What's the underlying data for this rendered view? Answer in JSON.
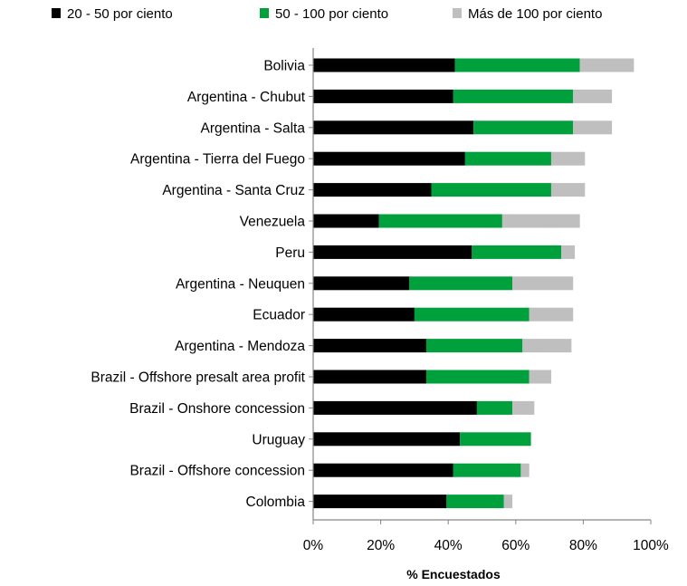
{
  "chart_data": {
    "type": "bar",
    "orientation": "horizontal",
    "stacked": true,
    "xlabel": "% Encuestados",
    "xlim": [
      0,
      100
    ],
    "x_ticks": [
      "0%",
      "20%",
      "40%",
      "60%",
      "80%",
      "100%"
    ],
    "x_tick_values": [
      0,
      20,
      40,
      60,
      80,
      100
    ],
    "legend_position": "top",
    "grid": false,
    "categories": [
      "Bolivia",
      "Argentina - Chubut",
      "Argentina - Salta",
      "Argentina - Tierra del Fuego",
      "Argentina - Santa Cruz",
      "Venezuela",
      "Peru",
      "Argentina - Neuquen",
      "Ecuador",
      "Argentina - Mendoza",
      "Brazil - Offshore presalt area profit",
      "Brazil - Onshore concession",
      "Uruguay",
      "Brazil - Offshore concession",
      "Colombia"
    ],
    "series": [
      {
        "name": "20 - 50 por ciento",
        "color": "#000000",
        "values": [
          42,
          41.5,
          47.5,
          45,
          35,
          19.5,
          47,
          28.5,
          30,
          33.5,
          33.5,
          48.5,
          43.5,
          41.5,
          39.5
        ]
      },
      {
        "name": "50 - 100 por ciento",
        "color": "#00A03C",
        "values": [
          37,
          35.5,
          29.5,
          25.5,
          35.5,
          36.5,
          26.5,
          30.5,
          34,
          28.5,
          30.5,
          10.5,
          21,
          20,
          17
        ]
      },
      {
        "name": "Más de 100 por ciento",
        "color": "#BFBFBF",
        "values": [
          16,
          11.5,
          11.5,
          10,
          10,
          23,
          4,
          18,
          13,
          14.5,
          6.5,
          6.5,
          0,
          2.5,
          2.5
        ]
      }
    ]
  }
}
